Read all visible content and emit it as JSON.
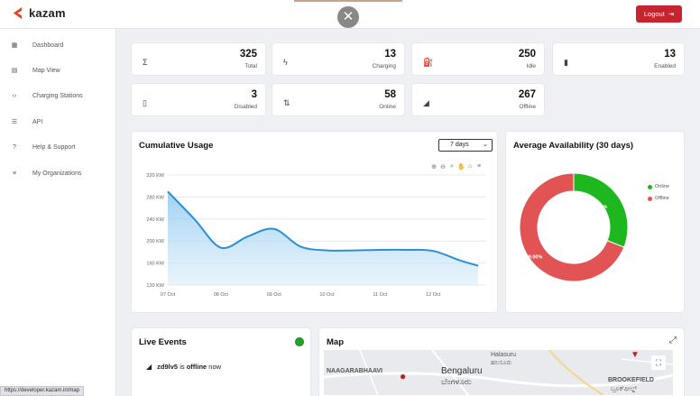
{
  "header": {
    "brand": "kazam",
    "close_symbol": "✕",
    "logout_label": "Logout",
    "brand_color": "#e8432a"
  },
  "sidebar": {
    "items": [
      {
        "label": "Dashboard",
        "icon": "dashboard-icon"
      },
      {
        "label": "Map View",
        "icon": "map-icon"
      },
      {
        "label": "Charging Stations",
        "icon": "charging-station-icon"
      },
      {
        "label": "API",
        "icon": "database-icon"
      },
      {
        "label": "Help & Support",
        "icon": "help-icon"
      },
      {
        "label": "My Organizations",
        "icon": "list-icon"
      }
    ]
  },
  "stats": [
    {
      "value": "325",
      "label": "Total",
      "icon": "sigma-icon"
    },
    {
      "value": "13",
      "label": "Charging",
      "icon": "bolt-icon"
    },
    {
      "value": "250",
      "label": "Idle",
      "icon": "fuel-station-icon"
    },
    {
      "value": "13",
      "label": "Enabled",
      "icon": "battery-icon"
    },
    {
      "value": "3",
      "label": "Disabled",
      "icon": "battery-disabled-icon"
    },
    {
      "value": "58",
      "label": "Online",
      "icon": "updown-arrows-icon"
    },
    {
      "value": "267",
      "label": "Offline",
      "icon": "signal-off-icon"
    }
  ],
  "usage": {
    "title": "Cumulative Usage",
    "range": "7 days"
  },
  "availability": {
    "title": "Average Availability (30 days)",
    "legend": [
      "Online",
      "Offline"
    ]
  },
  "live_events": {
    "title": "Live Events",
    "event_id": "zd9lv5",
    "event_is": "is",
    "event_status": "offline",
    "event_suffix": "now"
  },
  "map": {
    "title": "Map",
    "labels": [
      "Halasuru",
      "ಹಲಸೂರು",
      "NAAGARABHAAVI",
      "Bengaluru",
      "ಬೆಂಗಳೂರು",
      "BROOKEFIELD",
      "ಬ್ರೂಕ್‌ಫೀಲ್ಡ್"
    ]
  },
  "status_url": "https://developer.kazam.in/map",
  "chart_data": [
    {
      "type": "area",
      "title": "Cumulative Usage",
      "categories": [
        "07 Oct",
        "08 Oct",
        "09 Oct",
        "10 Oct",
        "11 Oct",
        "12 Oct"
      ],
      "x": [
        0,
        0.5,
        1,
        1.5,
        2,
        2.5,
        3,
        3.5,
        4,
        4.5,
        5,
        5.5,
        5.85
      ],
      "y": [
        290,
        240,
        188,
        208,
        222,
        190,
        183,
        183,
        184,
        184,
        182,
        165,
        155
      ],
      "y_ticks": [
        "120 KW",
        "160 KW",
        "200 KW",
        "240 KW",
        "280 KW",
        "320 KW"
      ],
      "ylim": [
        120,
        320
      ],
      "xlim": [
        0,
        6
      ],
      "grid": true,
      "color": "#2b8fd6"
    },
    {
      "type": "pie",
      "title": "Average Availability (30 days)",
      "categories": [
        "Online",
        "Offline"
      ],
      "values": [
        31.0,
        69.0
      ],
      "labels": [
        "31.00%",
        "69.00%"
      ],
      "colors": [
        "#1eb81e",
        "#e25454"
      ],
      "legend": "right"
    }
  ]
}
